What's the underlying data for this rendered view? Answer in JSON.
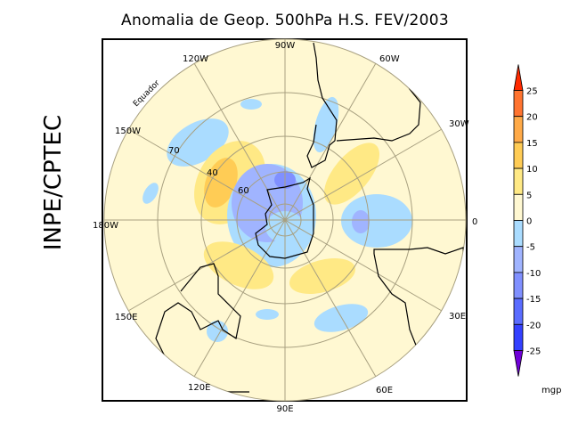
{
  "title": "Anomalia de Geop. 500hPa H.S. FEV/2003",
  "side_label": "INPE/CPTEC",
  "map": {
    "projection": "south polar stereographic",
    "longitude_labels": {
      "top": "90W",
      "top_right": "60W",
      "right_upper": "30W",
      "right": "0",
      "right_lower": "30E",
      "bottom_right": "60E",
      "bottom": "90E",
      "bottom_left": "120E",
      "left_lower": "150E",
      "left": "180W",
      "left_upper": "150W",
      "top_left": "120W"
    },
    "latitude_labels": [
      "70",
      "40",
      "60"
    ],
    "equator_label": "Equador"
  },
  "colorbar": {
    "levels": [
      "25",
      "20",
      "15",
      "10",
      "5",
      "0",
      "-5",
      "-10",
      "-15",
      "-20",
      "-25"
    ],
    "colors": [
      "#ff2a00",
      "#ff7430",
      "#ffaa48",
      "#ffcc55",
      "#ffe985",
      "#fff8d2",
      "#aadcff",
      "#a0b4ff",
      "#8090ff",
      "#5a6cff",
      "#3440ff",
      "#7000d8"
    ],
    "unit": "mgp"
  }
}
